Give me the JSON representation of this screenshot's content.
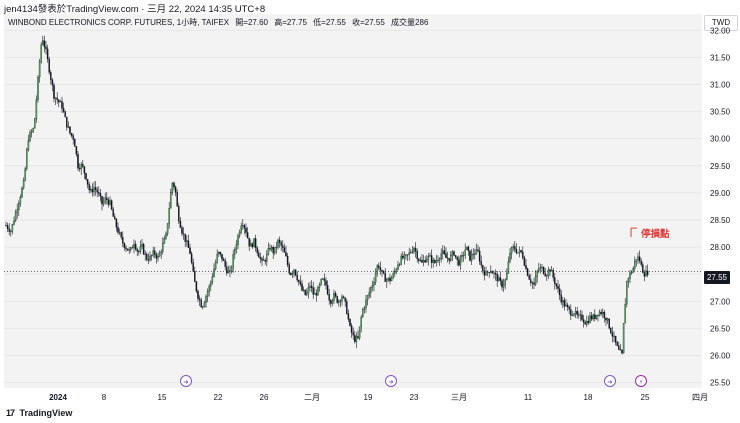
{
  "header": {
    "title": "jen4134發表於TradingView.com · 三月 22, 2024 14:35 UTC+8"
  },
  "chart_info": {
    "symbol": "WINBOND ELECTRONICS CORP. FUTURES, 1小時, TAIFEX",
    "open": "開=27.60",
    "high": "高=27.75",
    "low": "低=27.55",
    "close": "收=27.55",
    "volume": "成交量286"
  },
  "currency": "TWD",
  "last_price_label": "27.55",
  "annotation": {
    "text": "停損點",
    "price": 28.35,
    "color": "#e53935"
  },
  "footer": {
    "brand": "TradingView",
    "logo": "17"
  },
  "colors": {
    "up": "#4caf50",
    "down": "#131722",
    "background": "#f3f3f3",
    "grid": "#e6e6e6"
  },
  "chart_data": {
    "type": "candlestick",
    "ylim": [
      25.4,
      32.3
    ],
    "y_ticks": [
      "32.00",
      "31.50",
      "31.00",
      "30.50",
      "30.00",
      "29.50",
      "29.00",
      "28.50",
      "28.00",
      "27.50",
      "27.00",
      "26.50",
      "26.00",
      "25.50"
    ],
    "x_ticks": [
      "2024",
      "8",
      "15",
      "22",
      "26",
      "二月",
      "19",
      "23",
      "三月",
      "11",
      "18",
      "25",
      "四月"
    ],
    "event_markers": [
      "dividend-arrow-icon",
      "dividend-arrow-icon",
      "dividend-arrow-icon",
      "lightning-icon"
    ],
    "close_path": [
      [
        0,
        28.4
      ],
      [
        5,
        28.3
      ],
      [
        12,
        28.8
      ],
      [
        18,
        29.2
      ],
      [
        22,
        30.0
      ],
      [
        28,
        30.2
      ],
      [
        33,
        31.3
      ],
      [
        36,
        31.9
      ],
      [
        40,
        31.6
      ],
      [
        44,
        31.2
      ],
      [
        48,
        30.8
      ],
      [
        52,
        30.7
      ],
      [
        56,
        30.6
      ],
      [
        60,
        30.3
      ],
      [
        64,
        30.1
      ],
      [
        68,
        30.0
      ],
      [
        72,
        29.5
      ],
      [
        76,
        29.5
      ],
      [
        80,
        29.3
      ],
      [
        84,
        29.0
      ],
      [
        88,
        29.1
      ],
      [
        92,
        29.0
      ],
      [
        96,
        28.8
      ],
      [
        100,
        28.9
      ],
      [
        104,
        28.8
      ],
      [
        108,
        28.5
      ],
      [
        112,
        28.3
      ],
      [
        116,
        28.1
      ],
      [
        120,
        28.0
      ],
      [
        124,
        27.9
      ],
      [
        128,
        28.1
      ],
      [
        132,
        27.9
      ],
      [
        136,
        28.0
      ],
      [
        140,
        27.8
      ],
      [
        144,
        27.8
      ],
      [
        148,
        27.9
      ],
      [
        152,
        27.8
      ],
      [
        156,
        28.0
      ],
      [
        160,
        28.2
      ],
      [
        163,
        28.7
      ],
      [
        166,
        29.2
      ],
      [
        169,
        29.1
      ],
      [
        172,
        28.6
      ],
      [
        176,
        28.3
      ],
      [
        180,
        28.1
      ],
      [
        184,
        27.9
      ],
      [
        188,
        27.4
      ],
      [
        192,
        27.1
      ],
      [
        196,
        26.9
      ],
      [
        200,
        27.1
      ],
      [
        204,
        27.3
      ],
      [
        208,
        27.6
      ],
      [
        212,
        27.9
      ],
      [
        216,
        27.8
      ],
      [
        220,
        27.6
      ],
      [
        224,
        27.5
      ],
      [
        228,
        27.9
      ],
      [
        232,
        28.2
      ],
      [
        236,
        28.5
      ],
      [
        240,
        28.3
      ],
      [
        244,
        28.0
      ],
      [
        248,
        28.1
      ],
      [
        252,
        27.9
      ],
      [
        256,
        27.7
      ],
      [
        260,
        27.8
      ],
      [
        264,
        28.0
      ],
      [
        268,
        27.9
      ],
      [
        272,
        28.1
      ],
      [
        276,
        28.0
      ],
      [
        280,
        27.8
      ],
      [
        284,
        27.5
      ],
      [
        288,
        27.6
      ],
      [
        292,
        27.4
      ],
      [
        296,
        27.2
      ],
      [
        300,
        27.1
      ],
      [
        304,
        27.3
      ],
      [
        308,
        27.1
      ],
      [
        312,
        27.2
      ],
      [
        316,
        27.4
      ],
      [
        320,
        27.3
      ],
      [
        324,
        27.0
      ],
      [
        328,
        27.1
      ],
      [
        332,
        27.0
      ],
      [
        336,
        27.1
      ],
      [
        340,
        26.9
      ],
      [
        344,
        26.5
      ],
      [
        348,
        26.3
      ],
      [
        352,
        26.3
      ],
      [
        356,
        26.8
      ],
      [
        360,
        27.0
      ],
      [
        364,
        27.2
      ],
      [
        368,
        27.4
      ],
      [
        372,
        27.7
      ],
      [
        376,
        27.5
      ],
      [
        380,
        27.4
      ],
      [
        384,
        27.4
      ],
      [
        388,
        27.5
      ],
      [
        392,
        27.7
      ],
      [
        396,
        27.8
      ],
      [
        400,
        27.8
      ],
      [
        404,
        27.9
      ],
      [
        408,
        28.0
      ],
      [
        412,
        27.8
      ],
      [
        416,
        27.7
      ],
      [
        420,
        27.8
      ],
      [
        424,
        27.8
      ],
      [
        428,
        27.7
      ],
      [
        432,
        27.8
      ],
      [
        436,
        27.9
      ],
      [
        440,
        27.8
      ],
      [
        444,
        27.8
      ],
      [
        448,
        27.9
      ],
      [
        452,
        27.7
      ],
      [
        456,
        27.8
      ],
      [
        460,
        28.0
      ],
      [
        464,
        27.8
      ],
      [
        468,
        27.9
      ],
      [
        472,
        27.9
      ],
      [
        476,
        27.6
      ],
      [
        480,
        27.5
      ],
      [
        484,
        27.6
      ],
      [
        488,
        27.5
      ],
      [
        492,
        27.4
      ],
      [
        496,
        27.3
      ],
      [
        500,
        27.4
      ],
      [
        504,
        27.9
      ],
      [
        508,
        28.0
      ],
      [
        512,
        27.9
      ],
      [
        516,
        27.9
      ],
      [
        520,
        27.6
      ],
      [
        524,
        27.4
      ],
      [
        528,
        27.3
      ],
      [
        532,
        27.6
      ],
      [
        536,
        27.6
      ],
      [
        540,
        27.5
      ],
      [
        544,
        27.6
      ],
      [
        548,
        27.4
      ],
      [
        552,
        27.2
      ],
      [
        556,
        27.0
      ],
      [
        560,
        26.9
      ],
      [
        564,
        26.8
      ],
      [
        568,
        26.8
      ],
      [
        572,
        26.7
      ],
      [
        576,
        26.7
      ],
      [
        580,
        26.6
      ],
      [
        584,
        26.7
      ],
      [
        588,
        26.7
      ],
      [
        592,
        26.8
      ],
      [
        596,
        26.8
      ],
      [
        600,
        26.7
      ],
      [
        604,
        26.5
      ],
      [
        608,
        26.3
      ],
      [
        612,
        26.1
      ],
      [
        616,
        26.0
      ],
      [
        618,
        26.7
      ],
      [
        621,
        27.4
      ],
      [
        624,
        27.5
      ],
      [
        627,
        27.6
      ],
      [
        630,
        27.8
      ],
      [
        633,
        27.8
      ],
      [
        636,
        27.6
      ],
      [
        639,
        27.5
      ],
      [
        642,
        27.55
      ]
    ]
  }
}
